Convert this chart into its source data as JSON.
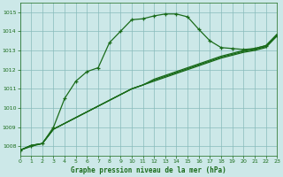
{
  "title": "Graphe pression niveau de la mer (hPa)",
  "bg_color": "#cce8e8",
  "grid_color": "#88bbbb",
  "line_color": "#1a6b1a",
  "xlim": [
    0,
    23
  ],
  "ylim": [
    1007.5,
    1015.5
  ],
  "yticks": [
    1008,
    1009,
    1010,
    1011,
    1012,
    1013,
    1014,
    1015
  ],
  "xticks": [
    0,
    1,
    2,
    3,
    4,
    5,
    6,
    7,
    8,
    9,
    10,
    11,
    12,
    13,
    14,
    15,
    16,
    17,
    18,
    19,
    20,
    21,
    22,
    23
  ],
  "curve": [
    1007.8,
    1008.0,
    1008.15,
    1009.0,
    1010.5,
    1011.4,
    1011.9,
    1012.1,
    1013.4,
    1014.0,
    1014.6,
    1014.65,
    1014.8,
    1014.9,
    1014.9,
    1014.75,
    1014.1,
    1013.5,
    1013.15,
    1013.1,
    1013.05,
    1013.1,
    1013.25,
    1013.8
  ],
  "line1": [
    1007.8,
    1008.05,
    1008.15,
    1008.9,
    1009.2,
    1009.5,
    1009.8,
    1010.1,
    1010.4,
    1010.7,
    1011.0,
    1011.2,
    1011.4,
    1011.6,
    1011.8,
    1012.0,
    1012.2,
    1012.4,
    1012.6,
    1012.75,
    1012.9,
    1013.0,
    1013.15,
    1013.75
  ],
  "line2": [
    1007.8,
    1008.05,
    1008.15,
    1008.9,
    1009.2,
    1009.5,
    1009.8,
    1010.1,
    1010.4,
    1010.7,
    1011.0,
    1011.2,
    1011.45,
    1011.65,
    1011.85,
    1012.05,
    1012.25,
    1012.45,
    1012.65,
    1012.8,
    1012.95,
    1013.05,
    1013.2,
    1013.8
  ],
  "line3": [
    1007.8,
    1008.05,
    1008.15,
    1008.9,
    1009.2,
    1009.5,
    1009.8,
    1010.1,
    1010.4,
    1010.7,
    1011.0,
    1011.2,
    1011.5,
    1011.7,
    1011.9,
    1012.1,
    1012.3,
    1012.5,
    1012.7,
    1012.85,
    1013.0,
    1013.1,
    1013.25,
    1013.85
  ]
}
